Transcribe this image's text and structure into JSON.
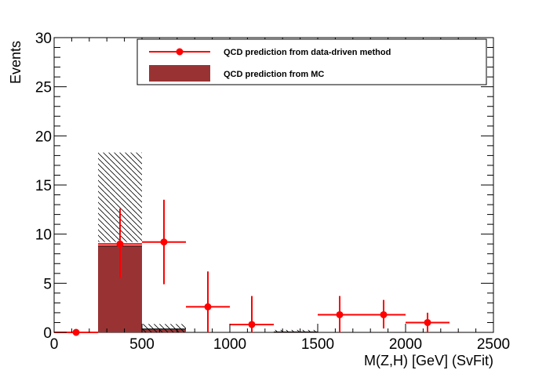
{
  "chart_data": {
    "type": "bar",
    "title": "",
    "xlabel": "M(Z,H) [GeV] (SvFit)",
    "ylabel": "Events",
    "xlim": [
      0,
      2500
    ],
    "ylim": [
      0,
      30
    ],
    "x_ticks": [
      0,
      500,
      1000,
      1500,
      2000,
      2500
    ],
    "y_ticks": [
      0,
      5,
      10,
      15,
      20,
      25,
      30
    ],
    "grid": false,
    "legend_position": "top-right",
    "colors": {
      "mc": "#993333",
      "data_driven": "#ff0000"
    },
    "series": [
      {
        "name": "QCD prediction from MC",
        "kind": "histogram",
        "bins": [
          {
            "x_low": 250,
            "x_high": 500,
            "value": 8.8,
            "error_high": 18.3,
            "error_low": 9.2
          },
          {
            "x_low": 500,
            "x_high": 750,
            "value": 0.35,
            "error_high": 0.85,
            "error_low": 0.0
          },
          {
            "x_low": 1250,
            "x_high": 1500,
            "value": 0.05,
            "error_high": 0.25,
            "error_low": 0.0
          }
        ]
      },
      {
        "name": "QCD prediction from data-driven method",
        "kind": "points",
        "points": [
          {
            "x": 125,
            "x_low": 0,
            "x_high": 250,
            "y": 0.0,
            "y_low": 0.0,
            "y_high": 0.0
          },
          {
            "x": 375,
            "x_low": 250,
            "x_high": 500,
            "y": 9.0,
            "y_low": 5.5,
            "y_high": 12.6
          },
          {
            "x": 625,
            "x_low": 500,
            "x_high": 750,
            "y": 9.2,
            "y_low": 4.9,
            "y_high": 13.5
          },
          {
            "x": 875,
            "x_low": 750,
            "x_high": 1000,
            "y": 2.6,
            "y_low": 0.0,
            "y_high": 6.2
          },
          {
            "x": 1125,
            "x_low": 1000,
            "x_high": 1250,
            "y": 0.8,
            "y_low": 0.0,
            "y_high": 3.7
          },
          {
            "x": 1625,
            "x_low": 1500,
            "x_high": 1750,
            "y": 1.8,
            "y_low": 0.0,
            "y_high": 3.7
          },
          {
            "x": 1875,
            "x_low": 1750,
            "x_high": 2000,
            "y": 1.8,
            "y_low": 0.4,
            "y_high": 3.3
          },
          {
            "x": 2125,
            "x_low": 2000,
            "x_high": 2250,
            "y": 1.0,
            "y_low": 0.0,
            "y_high": 2.0
          }
        ]
      }
    ]
  }
}
